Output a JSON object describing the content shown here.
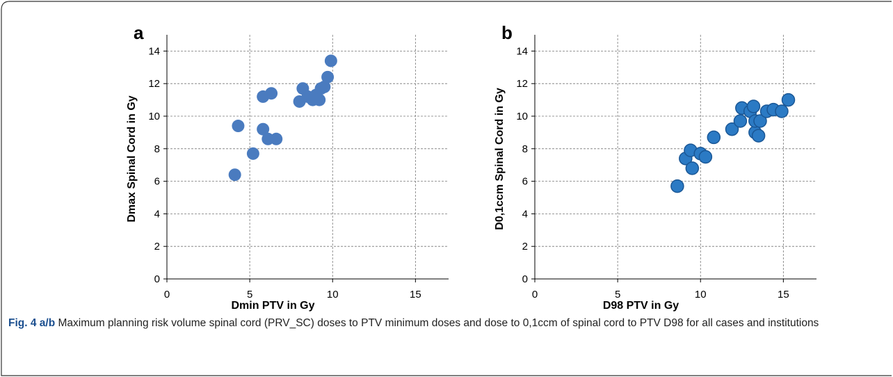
{
  "chart_data": [
    {
      "type": "scatter",
      "label": "a",
      "xlabel": "Dmin PTV in Gy",
      "ylabel": "Dmax Spinal Cord in Gy",
      "xlim": [
        0,
        17
      ],
      "ylim": [
        0,
        15
      ],
      "xticks": [
        0,
        5,
        10,
        15
      ],
      "yticks": [
        0,
        2,
        4,
        6,
        8,
        10,
        12,
        14
      ],
      "grid": true,
      "color": "#4a7bbf",
      "x": [
        4.1,
        4.3,
        5.2,
        5.8,
        6.3,
        5.8,
        6.1,
        6.6,
        8.0,
        8.2,
        8.5,
        8.8,
        9.0,
        9.2,
        9.3,
        9.5,
        9.7,
        9.9
      ],
      "values": [
        6.4,
        9.4,
        7.7,
        11.2,
        11.4,
        9.2,
        8.6,
        8.6,
        10.9,
        11.7,
        11.2,
        11.0,
        11.3,
        11.0,
        11.7,
        11.8,
        12.4,
        13.4
      ]
    },
    {
      "type": "scatter",
      "label": "b",
      "xlabel": "D98 PTV in Gy",
      "ylabel": "D0,1ccm Spinal Cord in Gy",
      "xlim": [
        0,
        17
      ],
      "ylim": [
        0,
        15
      ],
      "xticks": [
        0,
        5,
        10,
        15
      ],
      "yticks": [
        0,
        2,
        4,
        6,
        8,
        10,
        12,
        14
      ],
      "grid": true,
      "color": "#2b7ac4",
      "x": [
        8.6,
        9.1,
        9.4,
        9.5,
        10.0,
        10.3,
        10.8,
        11.9,
        12.4,
        12.5,
        13.0,
        13.2,
        13.3,
        13.3,
        13.5,
        13.6,
        14.0,
        14.4,
        14.9,
        15.3
      ],
      "values": [
        5.7,
        7.4,
        7.9,
        6.8,
        7.7,
        7.5,
        8.7,
        9.2,
        9.7,
        10.5,
        10.3,
        10.6,
        9.0,
        9.7,
        8.8,
        9.7,
        10.3,
        10.4,
        10.3,
        11.0
      ]
    }
  ],
  "caption": {
    "label": "Fig. 4 a/b",
    "text": "Maximum planning risk volume spinal cord (PRV_SC) doses to PTV minimum doses and dose to 0,1ccm of spinal cord to PTV D98 for all cases and institutions"
  }
}
